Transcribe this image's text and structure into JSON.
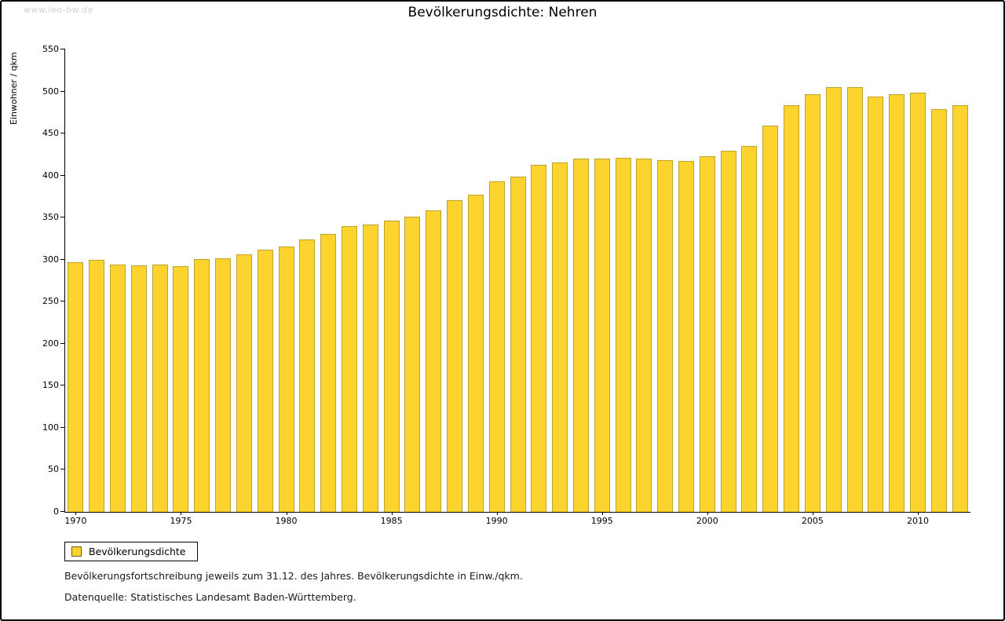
{
  "page": {
    "watermark": "www.leo-bw.de",
    "title": "Bevölkerungsdichte: Nehren"
  },
  "chart_data": {
    "type": "bar",
    "title": "Bevölkerungsdichte: Nehren",
    "xlabel": "",
    "ylabel": "Einwohner / qkm",
    "ylim": [
      0,
      550
    ],
    "ytick_step": 50,
    "xtick_every": 5,
    "grid": false,
    "legend_position": "bottom-left",
    "series_name": "Bevölkerungsdichte",
    "bar_fill": "#fcd42d",
    "bar_border": "#bfa22e",
    "categories": [
      1970,
      1971,
      1972,
      1973,
      1974,
      1975,
      1976,
      1977,
      1978,
      1979,
      1980,
      1981,
      1982,
      1983,
      1984,
      1985,
      1986,
      1987,
      1988,
      1989,
      1990,
      1991,
      1992,
      1993,
      1994,
      1995,
      1996,
      1997,
      1998,
      1999,
      2000,
      2001,
      2002,
      2003,
      2004,
      2005,
      2006,
      2007,
      2008,
      2009,
      2010,
      2011,
      2012
    ],
    "values": [
      297,
      300,
      294,
      293,
      294,
      292,
      301,
      302,
      306,
      312,
      316,
      324,
      331,
      340,
      342,
      346,
      351,
      359,
      371,
      377,
      393,
      399,
      413,
      416,
      420,
      420,
      421,
      420,
      418,
      417,
      423,
      430,
      435,
      459,
      484,
      497,
      505,
      505,
      494,
      497,
      499,
      479,
      484
    ]
  },
  "legend": {
    "label": "Bevölkerungsdichte"
  },
  "footnotes": {
    "line1": "Bevölkerungsfortschreibung jeweils zum 31.12. des Jahres. Bevölkerungsdichte in Einw./qkm.",
    "line2": "Datenquelle: Statistisches Landesamt Baden-Württemberg."
  }
}
